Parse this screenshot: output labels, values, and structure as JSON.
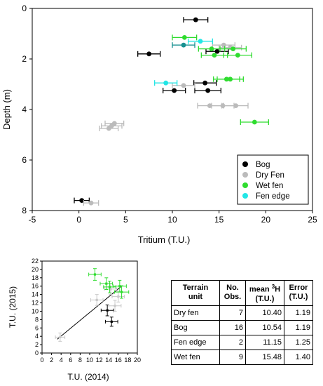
{
  "chart_data": [
    {
      "type": "scatter",
      "xlabel": "Tritium (T.U.)",
      "ylabel": "Depth (m)",
      "xlim": [
        -5,
        25
      ],
      "ylim": [
        0,
        8
      ],
      "y_inverted": true,
      "xticks": [
        "-5",
        "0",
        "5",
        "10",
        "15",
        "20",
        "25"
      ],
      "yticks": [
        "0",
        "2",
        "4",
        "6",
        "8"
      ],
      "legend_position": "bottom-right",
      "series": [
        {
          "name": "Bog",
          "color": "#000000",
          "points": [
            {
              "x": 12.5,
              "y": 0.45,
              "xerr": 1.3
            },
            {
              "x": 7.5,
              "y": 1.8,
              "xerr": 1.2
            },
            {
              "x": 14.8,
              "y": 1.7,
              "xerr": 1.2
            },
            {
              "x": 13.5,
              "y": 2.95,
              "xerr": 1.2
            },
            {
              "x": 10.2,
              "y": 3.25,
              "xerr": 1.2
            },
            {
              "x": 13.8,
              "y": 3.25,
              "xerr": 1.4
            },
            {
              "x": 0.3,
              "y": 7.6,
              "xerr": 0.8
            }
          ]
        },
        {
          "name": "Dry Fen",
          "color": "#bbbbbb",
          "points": [
            {
              "x": 15.5,
              "y": 1.45,
              "xerr": 1.2
            },
            {
              "x": 16.2,
              "y": 1.55,
              "xerr": 1.2
            },
            {
              "x": 11.2,
              "y": 3.05,
              "xerr": 1.2
            },
            {
              "x": 14.0,
              "y": 3.85,
              "xerr": 1.3
            },
            {
              "x": 15.4,
              "y": 3.85,
              "xerr": 1.2
            },
            {
              "x": 16.8,
              "y": 3.85,
              "xerr": 1.3
            },
            {
              "x": 3.8,
              "y": 4.55,
              "xerr": 1.0
            },
            {
              "x": 3.5,
              "y": 4.65,
              "xerr": 1.1
            },
            {
              "x": 3.2,
              "y": 4.75,
              "xerr": 1.0
            },
            {
              "x": 1.3,
              "y": 7.7,
              "xerr": 0.8
            }
          ]
        },
        {
          "name": "Wet fen",
          "color": "#2fdc2f",
          "points": [
            {
              "x": 11.3,
              "y": 1.15,
              "xerr": 1.3
            },
            {
              "x": 14.2,
              "y": 1.6,
              "xerr": 1.4
            },
            {
              "x": 16.5,
              "y": 1.6,
              "xerr": 1.4
            },
            {
              "x": 14.5,
              "y": 1.85,
              "xerr": 1.4
            },
            {
              "x": 17.0,
              "y": 1.85,
              "xerr": 1.5
            },
            {
              "x": 15.8,
              "y": 2.8,
              "xerr": 1.4
            },
            {
              "x": 16.2,
              "y": 2.8,
              "xerr": 1.4
            },
            {
              "x": 18.8,
              "y": 4.5,
              "xerr": 1.5
            }
          ]
        },
        {
          "name": "Fen edge",
          "color": "#22e6e6",
          "points": [
            {
              "x": 13.0,
              "y": 1.3,
              "xerr": 1.3
            },
            {
              "x": 9.3,
              "y": 2.95,
              "xerr": 1.2
            }
          ]
        },
        {
          "name": "",
          "color": "#169090",
          "points": [
            {
              "x": 11.2,
              "y": 1.45,
              "xerr": 1.2
            }
          ]
        }
      ]
    },
    {
      "type": "scatter",
      "xlabel": "T.U. (2014)",
      "ylabel": "T.U. (2015)",
      "xlim": [
        0,
        20
      ],
      "ylim": [
        0,
        22
      ],
      "xticks": [
        "0",
        "2",
        "4",
        "6",
        "8",
        "10",
        "12",
        "14",
        "16",
        "18",
        "20"
      ],
      "yticks": [
        "0",
        "2",
        "4",
        "6",
        "8",
        "10",
        "12",
        "14",
        "16",
        "18",
        "20",
        "22"
      ],
      "fit_line": {
        "x": [
          3.2,
          16.6
        ],
        "y": [
          3.3,
          15.9
        ]
      },
      "series": [
        {
          "name": "",
          "color": "#000000",
          "points": [
            {
              "x": 13.7,
              "y": 10.2,
              "xerr": 1.3,
              "yerr": 1.3
            },
            {
              "x": 14.6,
              "y": 7.5,
              "xerr": 1.3,
              "yerr": 1.1
            }
          ]
        },
        {
          "name": "",
          "color": "#c8c8c8",
          "points": [
            {
              "x": 3.8,
              "y": 3.8,
              "xerr": 1.0,
              "yerr": 1.0
            },
            {
              "x": 11.5,
              "y": 12.7,
              "xerr": 1.3,
              "yerr": 1.3
            },
            {
              "x": 14.4,
              "y": 15.3,
              "xerr": 1.3,
              "yerr": 1.3
            },
            {
              "x": 15.3,
              "y": 11.3,
              "xerr": 1.3,
              "yerr": 1.3
            },
            {
              "x": 16.0,
              "y": 13.5,
              "xerr": 1.3,
              "yerr": 1.3
            }
          ]
        },
        {
          "name": "",
          "color": "#2fdc2f",
          "points": [
            {
              "x": 11.1,
              "y": 18.8,
              "xerr": 1.3,
              "yerr": 1.4
            },
            {
              "x": 13.5,
              "y": 16.6,
              "xerr": 1.3,
              "yerr": 1.4
            },
            {
              "x": 14.2,
              "y": 15.8,
              "xerr": 1.3,
              "yerr": 1.4
            },
            {
              "x": 16.3,
              "y": 16.0,
              "xerr": 1.4,
              "yerr": 1.4
            },
            {
              "x": 16.7,
              "y": 14.6,
              "xerr": 1.5,
              "yerr": 1.5
            }
          ]
        }
      ]
    },
    {
      "type": "table",
      "columns": [
        "Terrain unit",
        "No. Obs.",
        "mean ³H (T.U.)",
        "Error (T.U.)"
      ],
      "rows": [
        [
          "Dry fen",
          "7",
          "10.40",
          "1.19"
        ],
        [
          "Bog",
          "16",
          "10.54",
          "1.19"
        ],
        [
          "Fen edge",
          "2",
          "11.15",
          "1.25"
        ],
        [
          "Wet fen",
          "9",
          "15.48",
          "1.40"
        ]
      ]
    }
  ],
  "table": {
    "header": {
      "terrain_1": "Terrain",
      "terrain_2": "unit",
      "obs_1": "No.",
      "obs_2": "Obs.",
      "mean_1": "mean ",
      "mean_sup": "3",
      "mean_2": "H",
      "mean_3": "(T.U.)",
      "error_1": "Error",
      "error_2": "(T.U.)"
    }
  }
}
